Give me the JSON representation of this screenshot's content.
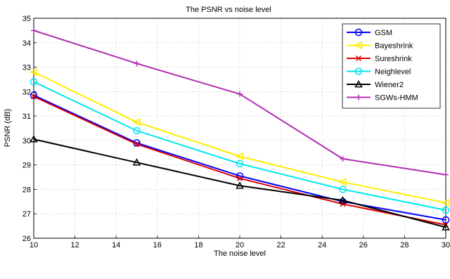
{
  "chart_data": {
    "type": "line",
    "title": "The PSNR vs noise level",
    "xlabel": "The noise level",
    "ylabel": "PSNR (dB)",
    "xlim": [
      10,
      30
    ],
    "ylim": [
      26,
      35
    ],
    "xticks": [
      10,
      12,
      14,
      16,
      18,
      20,
      22,
      24,
      26,
      28,
      30
    ],
    "yticks": [
      26,
      27,
      28,
      29,
      30,
      31,
      32,
      33,
      34,
      35
    ],
    "grid": true,
    "legend_position": "top-right",
    "x": [
      10,
      15,
      20,
      25,
      30
    ],
    "series": [
      {
        "name": "GSM",
        "values": [
          31.85,
          29.9,
          28.55,
          27.5,
          26.75
        ],
        "color": "#0000ff",
        "marker": "circle"
      },
      {
        "name": "Bayeshrink",
        "values": [
          32.8,
          30.75,
          29.35,
          28.3,
          27.45
        ],
        "color": "#ffee00",
        "marker": "triangle-left"
      },
      {
        "name": "Sureshrink",
        "values": [
          31.8,
          29.85,
          28.45,
          27.4,
          26.55
        ],
        "color": "#dd0000",
        "marker": "x"
      },
      {
        "name": "Neighlevel",
        "values": [
          32.4,
          30.4,
          29.05,
          28.0,
          27.15
        ],
        "color": "#00e5ee",
        "marker": "circle"
      },
      {
        "name": "Wiener2",
        "values": [
          30.05,
          29.1,
          28.15,
          27.55,
          26.45
        ],
        "color": "#000000",
        "marker": "triangle-up"
      },
      {
        "name": "SGWs-HMM",
        "values": [
          34.5,
          33.15,
          31.9,
          29.25,
          28.6
        ],
        "color": "#b22fb2",
        "marker": "plus"
      }
    ]
  }
}
